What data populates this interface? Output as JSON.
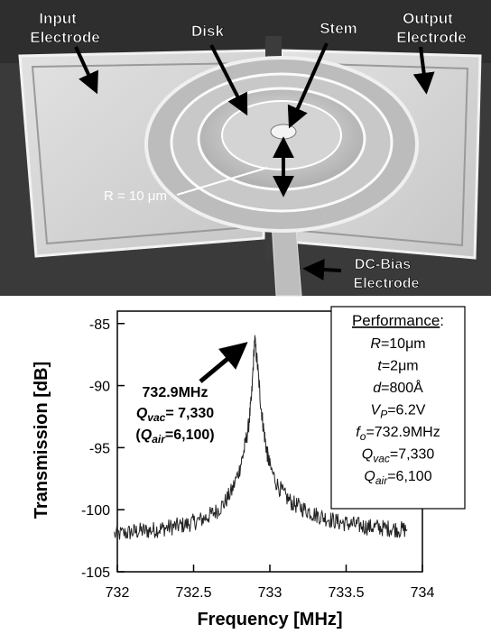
{
  "micrograph": {
    "labels": {
      "input_electrode": [
        "Input",
        "Electrode"
      ],
      "disk": "Disk",
      "stem": "Stem",
      "output_electrode": [
        "Output",
        "Electrode"
      ],
      "radius": "R = 10 μm",
      "dc_bias": [
        "DC-Bias",
        "Electrode"
      ]
    }
  },
  "performance": {
    "title": "Performance",
    "lines": [
      {
        "sym": "R",
        "sub": "",
        "val": "=10μm"
      },
      {
        "sym": "t",
        "sub": "",
        "val": "=2μm"
      },
      {
        "sym": "d",
        "sub": "",
        "val": "=800Å"
      },
      {
        "sym": "V",
        "sub": "P",
        "val": "=6.2V"
      },
      {
        "sym": "f",
        "sub": "o",
        "val": "=732.9MHz"
      },
      {
        "sym": "Q",
        "sub": "vac",
        "val": "=7,330"
      },
      {
        "sym": "Q",
        "sub": "air",
        "val": "=6,100"
      }
    ]
  },
  "annotation": {
    "freq": "732.9MHz",
    "q_vac_sym": "Q",
    "q_vac_sub": "vac",
    "q_vac_val": "= 7,330",
    "q_air_open": "(",
    "q_air_sym": "Q",
    "q_air_sub": "air",
    "q_air_val": "=6,100)"
  },
  "chart_data": {
    "type": "line",
    "xlabel": "Frequency [MHz]",
    "ylabel": "Transmission [dB]",
    "xlim": [
      732,
      734
    ],
    "ylim": [
      -105,
      -84
    ],
    "xticks": [
      732,
      732.5,
      733,
      733.5,
      734
    ],
    "xtick_labels": [
      "732",
      "732.5",
      "733",
      "733.5",
      "734"
    ],
    "yticks": [
      -105,
      -100,
      -95,
      -90,
      -85
    ],
    "ytick_labels": [
      "-105",
      "-100",
      "-95",
      "-90",
      "-85"
    ],
    "grid": false,
    "series": [
      {
        "x": [
          731.98,
          732.05,
          732.1,
          732.15,
          732.2,
          732.25,
          732.3,
          732.35,
          732.4,
          732.45,
          732.5,
          732.55,
          732.6,
          732.65,
          732.7,
          732.75,
          732.8,
          732.83,
          732.86,
          732.88,
          732.9,
          732.92,
          732.94,
          732.96,
          732.98,
          733.0,
          733.05,
          733.1,
          733.15,
          733.2,
          733.25,
          733.3,
          733.35,
          733.4,
          733.45,
          733.5,
          733.55,
          733.6,
          733.65,
          733.7,
          733.75,
          733.8,
          733.85,
          733.9
        ],
        "y": [
          -102.0,
          -101.9,
          -101.8,
          -101.7,
          -101.7,
          -101.6,
          -101.5,
          -101.4,
          -101.3,
          -101.2,
          -101.0,
          -100.8,
          -100.5,
          -100.1,
          -99.5,
          -98.5,
          -96.8,
          -95.3,
          -93.3,
          -91.0,
          -86.2,
          -88.5,
          -91.5,
          -93.6,
          -95.3,
          -96.5,
          -98.0,
          -98.9,
          -99.5,
          -99.8,
          -100.1,
          -100.4,
          -100.6,
          -100.8,
          -101.0,
          -101.1,
          -101.2,
          -101.3,
          -101.4,
          -101.4,
          -101.5,
          -101.5,
          -101.6,
          -101.6
        ]
      }
    ]
  }
}
